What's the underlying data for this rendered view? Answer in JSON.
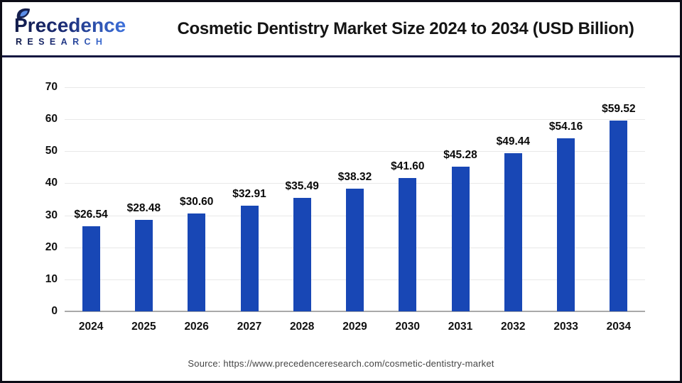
{
  "header": {
    "logo": {
      "line1": "Precedence",
      "line2": "RESEARCH"
    },
    "title": "Cosmetic Dentistry Market Size 2024 to 2034 (USD Billion)"
  },
  "chart_data": {
    "type": "bar",
    "title": "Cosmetic Dentistry Market Size 2024 to 2034 (USD Billion)",
    "categories": [
      "2024",
      "2025",
      "2026",
      "2027",
      "2028",
      "2029",
      "2030",
      "2031",
      "2032",
      "2033",
      "2034"
    ],
    "values": [
      26.54,
      28.48,
      30.6,
      32.91,
      35.49,
      38.32,
      41.6,
      45.28,
      49.44,
      54.16,
      59.52
    ],
    "value_labels": [
      "$26.54",
      "$28.48",
      "$30.60",
      "$32.91",
      "$35.49",
      "$38.32",
      "$41.60",
      "$45.28",
      "$49.44",
      "$54.16",
      "$59.52"
    ],
    "xlabel": "",
    "ylabel": "",
    "ylim": [
      0,
      70
    ],
    "yticks": [
      0,
      10,
      20,
      30,
      40,
      50,
      60,
      70
    ],
    "grid": true,
    "legend_position": "none"
  },
  "footer": {
    "source": "Source: https://www.precedenceresearch.com/cosmetic-dentistry-market"
  },
  "colors": {
    "bar": "#1847B5",
    "grid": "#e8e8e8",
    "axis": "#a9a9a9",
    "divider": "#121740",
    "logo_dark": "#131d4e",
    "logo_light": "#3e72dd",
    "title_text": "#141414"
  }
}
